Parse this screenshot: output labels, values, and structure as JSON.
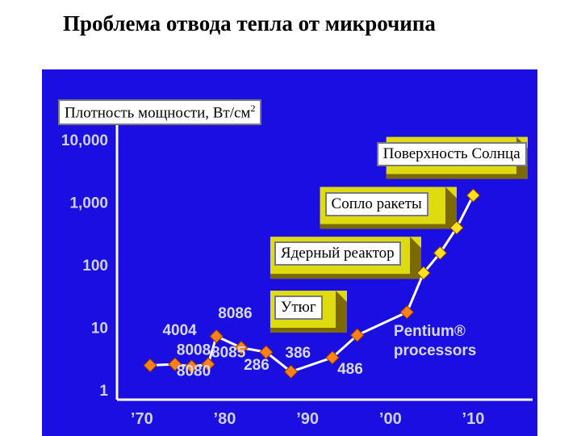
{
  "title": "Проблема отвода тепла от микрочипа",
  "chart_data": {
    "type": "line",
    "yscale": "log",
    "ylabel": "Плотность мощности, Вт/см",
    "ylabel_sup": "2",
    "y_ticks": [
      {
        "value": 1,
        "label": "1"
      },
      {
        "value": 10,
        "label": "10"
      },
      {
        "value": 100,
        "label": "100"
      },
      {
        "value": 1000,
        "label": "1,000"
      },
      {
        "value": 10000,
        "label": "10,000"
      }
    ],
    "x_ticks": [
      {
        "value": 1970,
        "label": "’70"
      },
      {
        "value": 1980,
        "label": "’80"
      },
      {
        "value": 1990,
        "label": "’90"
      },
      {
        "value": 2000,
        "label": "’00"
      },
      {
        "value": 2010,
        "label": "’10"
      }
    ],
    "xlim": [
      1967,
      2012
    ],
    "ylim": [
      1,
      10000
    ],
    "series": [
      {
        "points": [
          {
            "x": 1971,
            "y": 2.4
          },
          {
            "x": 1974,
            "y": 2.5
          },
          {
            "x": 1976,
            "y": 2.3
          },
          {
            "x": 1978,
            "y": 2.5
          },
          {
            "x": 1979,
            "y": 7
          },
          {
            "x": 1982,
            "y": 4.6
          },
          {
            "x": 1985,
            "y": 3.9
          },
          {
            "x": 1988,
            "y": 1.9
          },
          {
            "x": 1993,
            "y": 3.2
          },
          {
            "x": 1996,
            "y": 7.3
          },
          {
            "x": 2002,
            "y": 17
          },
          {
            "x": 2004,
            "y": 72
          },
          {
            "x": 2006,
            "y": 150
          },
          {
            "x": 2008,
            "y": 380
          },
          {
            "x": 2010,
            "y": 1250
          }
        ]
      }
    ],
    "annotations": [
      {
        "text": "4004",
        "x": 1972.5,
        "y": 7.3
      },
      {
        "text": "8008",
        "x": 1974.2,
        "y": 3.55
      },
      {
        "text": "8080",
        "x": 1974.2,
        "y": 1.63
      },
      {
        "text": "8085",
        "x": 1978.4,
        "y": 3.25
      },
      {
        "text": "8086",
        "x": 1979.2,
        "y": 13.7
      },
      {
        "text": "286",
        "x": 1982.3,
        "y": 2.05
      },
      {
        "text": "386",
        "x": 1987.3,
        "y": 3.2
      },
      {
        "text": "486",
        "x": 1993.6,
        "y": 1.75
      },
      {
        "text": "Pentium®",
        "x": 2000.4,
        "y": 7.1
      },
      {
        "text": "processors",
        "x": 2000.4,
        "y": 3.5
      }
    ],
    "reference_lines": [
      {
        "label": "Утюг",
        "y": 22,
        "x_start": 1985.5
      },
      {
        "label": "Ядерный реактор",
        "y": 160,
        "x_start": 1985.5
      },
      {
        "label": "Сопло ракеты",
        "y": 1000,
        "x_start": 1991.5
      },
      {
        "label": "Поверхность Солнца",
        "y": 6300,
        "x_start": 1999.5
      }
    ]
  },
  "colors": {
    "background": "#1a0fe0",
    "axis": "#ffffff",
    "line": "#ffffff",
    "marker_early": "#ff7f1a",
    "marker_late": "#ffe21a",
    "band_fill": "#dedc10",
    "band_dark": "#7a6a00",
    "tick_text": "#cfcfe8",
    "annotation_text": "#d8d8ec"
  }
}
